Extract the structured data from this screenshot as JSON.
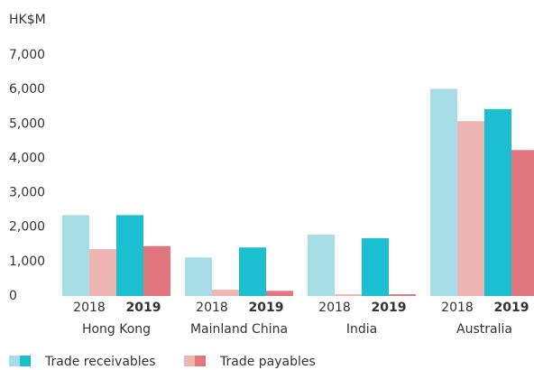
{
  "chart_data": {
    "type": "grouped_bar",
    "y_label": "HK$M",
    "groups": [
      "Hong Kong",
      "Mainland China",
      "India",
      "Australia"
    ],
    "categories": [
      "2018",
      "2019",
      "2018",
      "2019",
      "2018",
      "2019",
      "2018",
      "2019"
    ],
    "series": [
      {
        "name": "Trade receivables",
        "colors": [
          "#a6dde6",
          "#1bbfcf"
        ],
        "values": [
          2350,
          2350,
          1120,
          1410,
          1780,
          1680,
          6020,
          5430
        ]
      },
      {
        "name": "Trade payables",
        "colors": [
          "#eeb6b3",
          "#e0777e"
        ],
        "values": [
          1360,
          1450,
          180,
          150,
          50,
          50,
          5080,
          4240
        ]
      }
    ],
    "ylim": [
      0,
      7000
    ],
    "yticks": [
      0,
      {
        "value": 1000,
        "label": "1,000"
      },
      {
        "value": 2000,
        "label": "2,000"
      },
      {
        "value": 3000,
        "label": "3,000"
      },
      {
        "value": 4000,
        "label": "4,000"
      },
      {
        "value": 5000,
        "label": "5,000"
      },
      {
        "value": 6000,
        "label": "6,000"
      },
      {
        "value": 7000,
        "label": "7,000"
      }
    ],
    "grid": false
  }
}
